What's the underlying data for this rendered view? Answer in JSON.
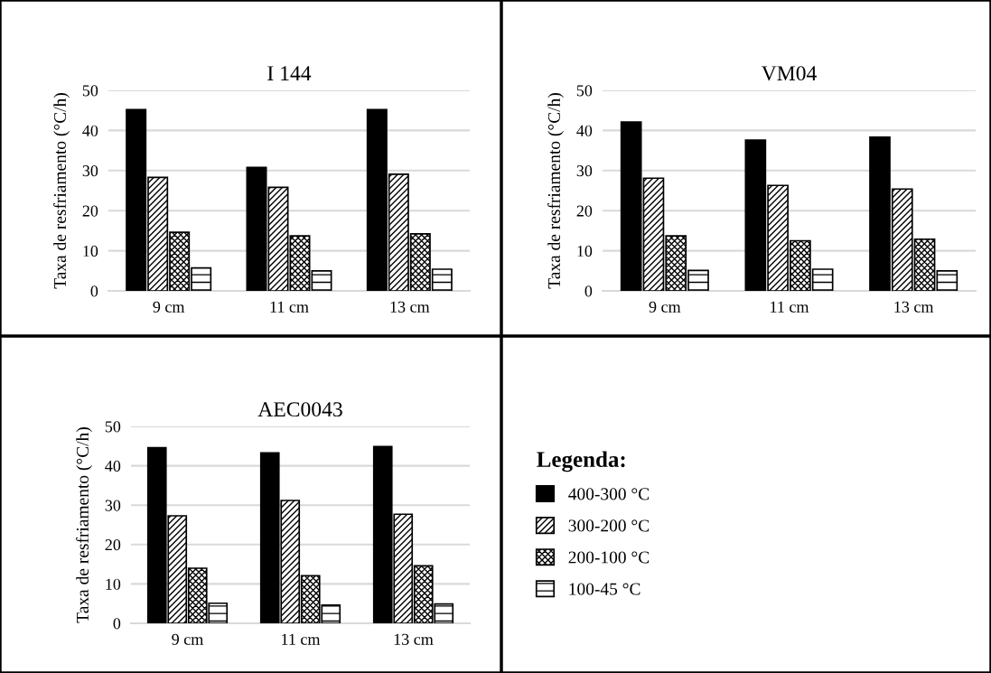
{
  "chart_data": [
    {
      "type": "bar",
      "title": "I 144",
      "ylabel": "Taxa de resfriamento (°C/h)",
      "categories": [
        "9 cm",
        "11 cm",
        "13 cm"
      ],
      "ylim": [
        0,
        50
      ],
      "yticks": [
        0,
        10,
        20,
        30,
        40,
        50
      ],
      "grid": "y",
      "series": [
        {
          "color": "#000000",
          "values": [
            45.2,
            30.8,
            45.2
          ]
        },
        {
          "color": "#000000",
          "values": [
            28.3,
            25.8,
            29.1
          ]
        },
        {
          "color": "#000000",
          "values": [
            14.6,
            13.7,
            14.2
          ]
        },
        {
          "color": "#000000",
          "values": [
            5.7,
            5.0,
            5.4
          ]
        }
      ]
    },
    {
      "type": "bar",
      "title": "VM04",
      "ylabel": "Taxa de resfriamento (°C/h)",
      "categories": [
        "9 cm",
        "11 cm",
        "13 cm"
      ],
      "ylim": [
        0,
        50
      ],
      "yticks": [
        0,
        10,
        20,
        30,
        40,
        50
      ],
      "grid": "y",
      "series": [
        {
          "color": "#000000",
          "values": [
            42.1,
            37.6,
            38.3
          ]
        },
        {
          "color": "#000000",
          "values": [
            28.1,
            26.3,
            25.4
          ]
        },
        {
          "color": "#000000",
          "values": [
            13.7,
            12.5,
            12.9
          ]
        },
        {
          "color": "#000000",
          "values": [
            5.1,
            5.4,
            5.0
          ]
        }
      ]
    },
    {
      "type": "bar",
      "title": "AEC0043",
      "ylabel": "Taxa de resfriamento (°C/h)",
      "categories": [
        "9 cm",
        "11 cm",
        "13 cm"
      ],
      "ylim": [
        0,
        50
      ],
      "yticks": [
        0,
        10,
        20,
        30,
        40,
        50
      ],
      "grid": "y",
      "legend": "right",
      "legend_title": "Legenda:",
      "series": [
        {
          "name": "400-300 °C",
          "color": "#000000",
          "values": [
            44.6,
            43.3,
            44.9
          ]
        },
        {
          "name": "300-200 °C",
          "color": "#000000",
          "values": [
            27.3,
            31.2,
            27.7
          ]
        },
        {
          "name": "200-100 °C",
          "color": "#000000",
          "values": [
            14.0,
            12.1,
            14.6
          ]
        },
        {
          "name": "100-45 °C",
          "color": "#000000",
          "values": [
            5.1,
            4.6,
            4.9
          ]
        }
      ]
    }
  ]
}
